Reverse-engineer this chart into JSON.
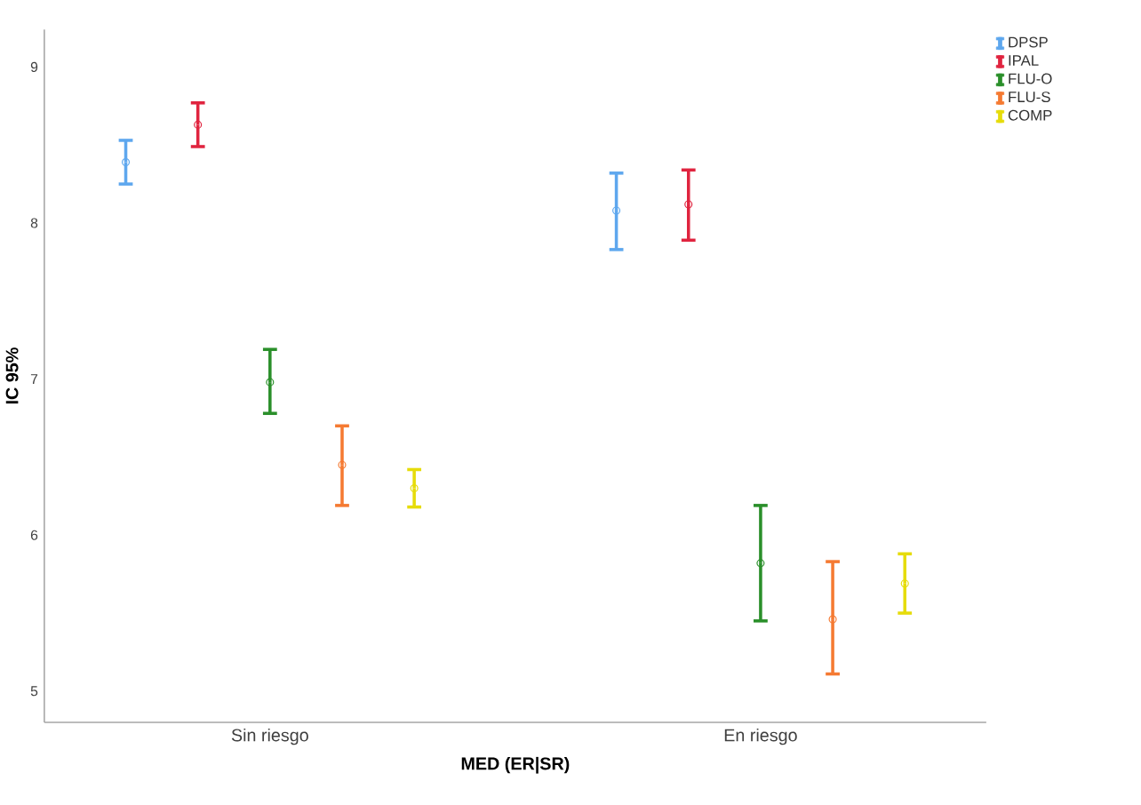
{
  "chart_data": {
    "type": "scatter",
    "xlabel": "MED (ER|SR)",
    "ylabel": "IC 95%",
    "categories": [
      "Sin riesgo",
      "En riesgo"
    ],
    "ylim": [
      4.8,
      9.24
    ],
    "yticks": [
      5,
      6,
      7,
      8,
      9
    ],
    "marker": "circle",
    "legend": "top right",
    "grid": false,
    "series": [
      {
        "name": "DPSP",
        "color": "#5ea7ee",
        "values": [
          8.39,
          8.08
        ],
        "errors": [
          [
            8.25,
            8.53
          ],
          [
            7.83,
            8.32
          ]
        ]
      },
      {
        "name": "IPAL",
        "color": "#e0243f",
        "values": [
          8.63,
          8.12
        ],
        "errors": [
          [
            8.49,
            8.77
          ],
          [
            7.89,
            8.34
          ]
        ]
      },
      {
        "name": "FLU-O",
        "color": "#2a8f2a",
        "values": [
          6.98,
          5.82
        ],
        "errors": [
          [
            6.78,
            7.19
          ],
          [
            5.45,
            6.19
          ]
        ]
      },
      {
        "name": "FLU-S",
        "color": "#f57a32",
        "values": [
          6.45,
          5.46
        ],
        "errors": [
          [
            6.19,
            6.7
          ],
          [
            5.11,
            5.83
          ]
        ]
      },
      {
        "name": "COMP",
        "color": "#e6dc0a",
        "values": [
          6.3,
          5.69
        ],
        "errors": [
          [
            6.18,
            6.42
          ],
          [
            5.5,
            5.88
          ]
        ]
      }
    ]
  }
}
